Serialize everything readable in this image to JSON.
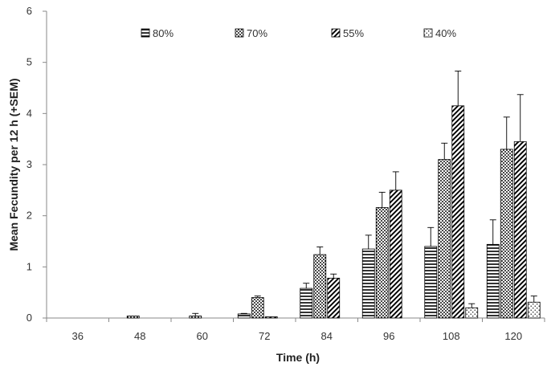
{
  "chart_data": {
    "type": "bar",
    "categories": [
      "36",
      "48",
      "60",
      "72",
      "84",
      "96",
      "108",
      "120"
    ],
    "xlabel": "Time (h)",
    "ylabel": "Mean Fecundity per 12 h (+SEM)",
    "ylim": [
      0,
      6
    ],
    "yticks": [
      "0",
      "1",
      "2",
      "3",
      "4",
      "5",
      "6"
    ],
    "legend_position": "top",
    "grid": false,
    "series": [
      {
        "name": "80%",
        "pattern": "horizontal-lines",
        "values": [
          0,
          0,
          0,
          0.08,
          0.58,
          1.35,
          1.4,
          1.44
        ],
        "errors": [
          0,
          0,
          0,
          0.01,
          0.1,
          0.27,
          0.37,
          0.48
        ]
      },
      {
        "name": "70%",
        "pattern": "dots",
        "values": [
          0,
          0.04,
          0.04,
          0.4,
          1.24,
          2.16,
          3.1,
          3.3
        ],
        "errors": [
          0,
          0,
          0.05,
          0.03,
          0.15,
          0.3,
          0.32,
          0.63
        ]
      },
      {
        "name": "55%",
        "pattern": "diagonal-lines",
        "values": [
          0,
          0,
          0,
          0.02,
          0.78,
          2.5,
          4.15,
          3.45
        ],
        "errors": [
          0,
          0,
          0,
          0,
          0.08,
          0.36,
          0.68,
          0.92
        ]
      },
      {
        "name": "40%",
        "pattern": "sparse-dots",
        "values": [
          0,
          0,
          0,
          0,
          0,
          0,
          0.2,
          0.31
        ],
        "errors": [
          0,
          0,
          0,
          0,
          0,
          0,
          0.08,
          0.12
        ]
      }
    ]
  }
}
